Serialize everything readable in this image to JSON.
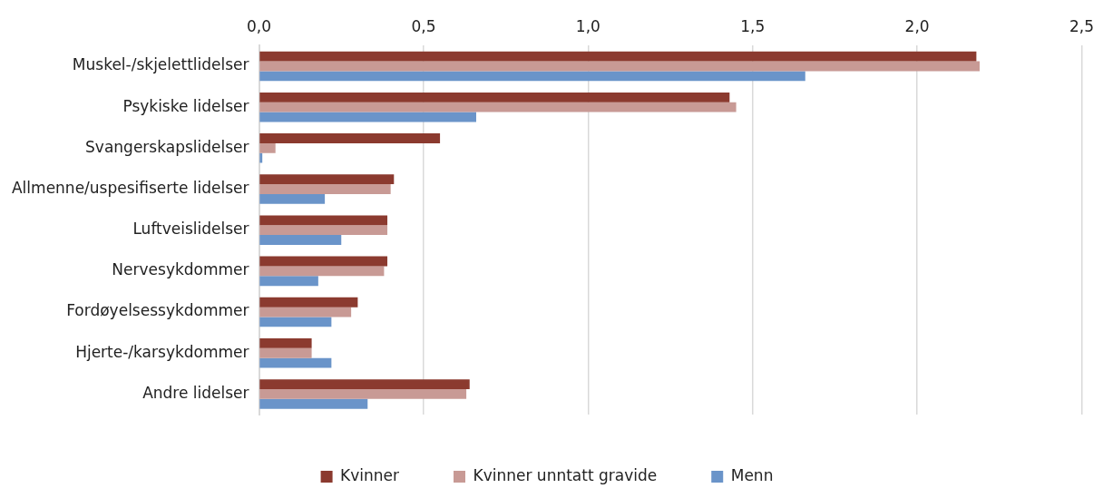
{
  "chart_data": {
    "type": "bar",
    "orientation": "horizontal",
    "categories": [
      "Muskel-/skjelettlidelser",
      "Psykiske lidelser",
      "Svangerskapslidelser",
      "Allmenne/uspesifiserte lidelser",
      "Luftveislidelser",
      "Nervesykdommer",
      "Fordøyelsessykdommer",
      "Hjerte-/karsykdommer",
      "Andre lidelser"
    ],
    "series": [
      {
        "name": "Kvinner",
        "color": "#8b3a2f",
        "values": [
          2.18,
          1.43,
          0.55,
          0.41,
          0.39,
          0.39,
          0.3,
          0.16,
          0.64
        ]
      },
      {
        "name": "Kvinner unntatt gravide",
        "color": "#c89a95",
        "values": [
          2.19,
          1.45,
          0.05,
          0.4,
          0.39,
          0.38,
          0.28,
          0.16,
          0.63
        ]
      },
      {
        "name": "Menn",
        "color": "#6a94c9",
        "values": [
          1.66,
          0.66,
          0.01,
          0.2,
          0.25,
          0.18,
          0.22,
          0.22,
          0.33
        ]
      }
    ],
    "xlim": [
      0,
      2.5
    ],
    "xticks": [
      {
        "value": 0,
        "label": "0,0"
      },
      {
        "value": 0.5,
        "label": "0,5"
      },
      {
        "value": 1,
        "label": "1,0"
      },
      {
        "value": 1.5,
        "label": "1,5"
      },
      {
        "value": 2,
        "label": "2,0"
      },
      {
        "value": 2.5,
        "label": "2,5"
      }
    ],
    "grid": "x",
    "legend": "bottom"
  }
}
